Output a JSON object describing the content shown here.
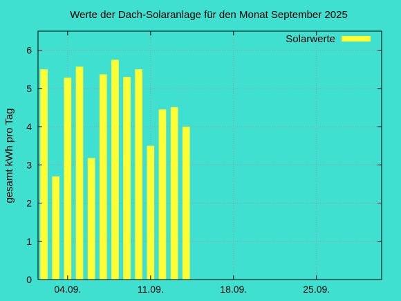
{
  "chart_data": {
    "type": "bar",
    "title": "Werte der Dach-Solaranlage für den Monat September 2025",
    "ylabel": "gesamt kWh pro Tag",
    "xlabel": "",
    "ylim": [
      0,
      6.5
    ],
    "yticks": [
      0,
      1,
      2,
      3,
      4,
      5,
      6
    ],
    "x_range_days": [
      1.5,
      30.5
    ],
    "xticks": [
      {
        "day": 4,
        "label": "04.09."
      },
      {
        "day": 11,
        "label": "11.09."
      },
      {
        "day": 18,
        "label": "18.09."
      },
      {
        "day": 25,
        "label": "25.09."
      }
    ],
    "grid": true,
    "legend_position": "top-right",
    "series": [
      {
        "name": "Solarwerte",
        "color": "#FFFF33",
        "x": [
          2,
          3,
          4,
          5,
          6,
          7,
          8,
          9,
          10,
          11,
          12,
          13,
          14
        ],
        "values": [
          5.5,
          2.7,
          5.28,
          5.57,
          3.18,
          5.37,
          5.75,
          5.3,
          5.5,
          3.5,
          4.45,
          4.51,
          4.0
        ]
      }
    ]
  },
  "colors": {
    "background": "#40E0D0",
    "bar": "#FFFF33",
    "grid": "#9a9a9a",
    "axis": "#000000"
  }
}
